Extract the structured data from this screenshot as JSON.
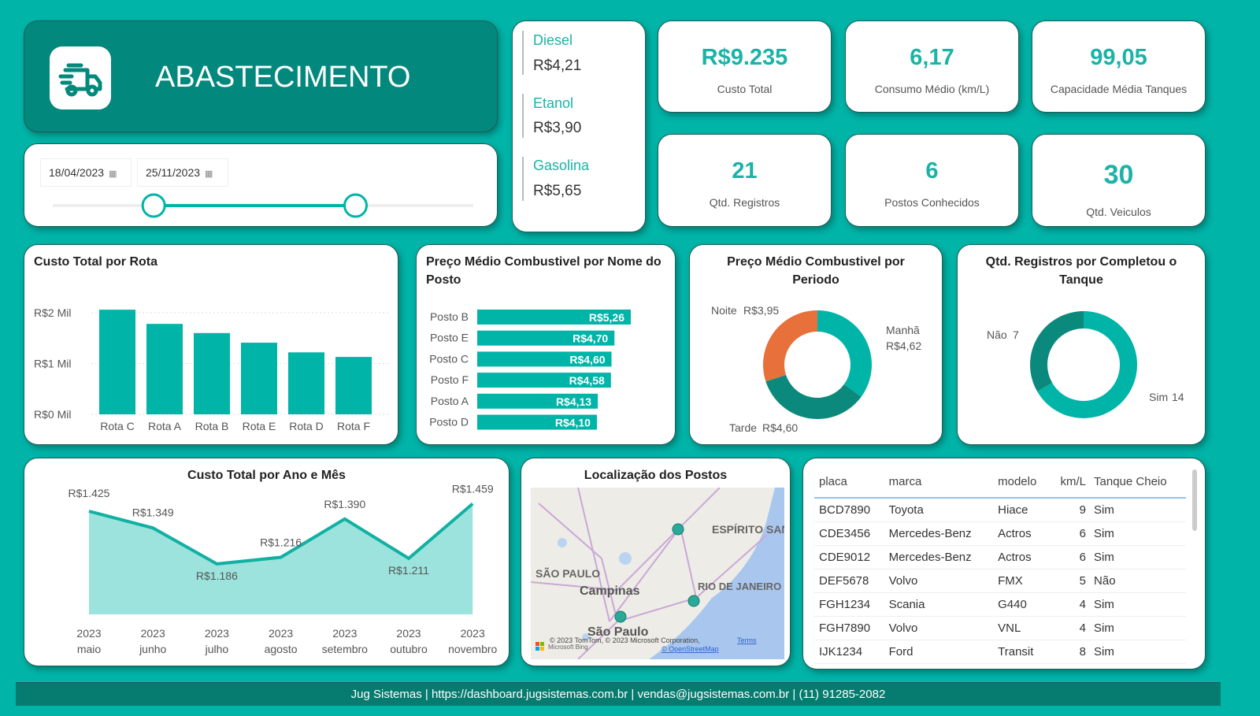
{
  "header": {
    "title": "ABASTECIMENTO",
    "icon": "delivery-truck-icon"
  },
  "date_filter": {
    "start": "18/04/2023",
    "end": "25/11/2023",
    "range_start": 0.24,
    "range_end": 0.72
  },
  "fuel_prices": [
    {
      "label": "Diesel",
      "value": "R$4,21"
    },
    {
      "label": "Etanol",
      "value": "R$3,90"
    },
    {
      "label": "Gasolina",
      "value": "R$5,65"
    }
  ],
  "kpis": [
    {
      "value": "R$9.235",
      "label": "Custo Total"
    },
    {
      "value": "6,17",
      "label": "Consumo Médio (km/L)"
    },
    {
      "value": "99,05",
      "label": "Capacidade Média Tanques"
    },
    {
      "value": "21",
      "label": "Qtd. Registros"
    },
    {
      "value": "6",
      "label": "Postos Conhecidos"
    },
    {
      "value": "30",
      "label": "Qtd. Veiculos"
    }
  ],
  "colors": {
    "accent": "#01b4a8",
    "dark": "#02887c",
    "orange": "#e8703a",
    "area": "#9be3dc"
  },
  "chart_data": [
    {
      "type": "bar",
      "title": "Custo Total por Rota",
      "categories": [
        "Rota C",
        "Rota A",
        "Rota B",
        "Rota E",
        "Rota D",
        "Rota F"
      ],
      "values": [
        2060,
        1780,
        1600,
        1410,
        1220,
        1130
      ],
      "yticks": [
        "R$0 Mil",
        "R$1 Mil",
        "R$2 Mil"
      ],
      "ylim": [
        0,
        2000
      ]
    },
    {
      "type": "bar",
      "orientation": "horizontal",
      "title": "Preço Médio Combustivel por Nome do Posto",
      "categories": [
        "Posto B",
        "Posto E",
        "Posto C",
        "Posto F",
        "Posto A",
        "Posto D"
      ],
      "values": [
        5.26,
        4.7,
        4.6,
        4.58,
        4.13,
        4.1
      ],
      "labels": [
        "R$5,26",
        "R$4,70",
        "R$4,60",
        "R$4,58",
        "R$4,13",
        "R$4,10"
      ]
    },
    {
      "type": "pie",
      "title": "Preço Médio Combustivel por Periodo",
      "slices": [
        {
          "label": "Manhã",
          "value": 4.62,
          "text": "R$4,62"
        },
        {
          "label": "Tarde",
          "value": 4.6,
          "text": "R$4,60"
        },
        {
          "label": "Noite",
          "value": 3.95,
          "text": "R$3,95"
        }
      ]
    },
    {
      "type": "pie",
      "title": "Qtd. Registros por Completou o Tanque",
      "slices": [
        {
          "label": "Sim",
          "value": 14
        },
        {
          "label": "Não",
          "value": 7
        }
      ]
    },
    {
      "type": "area",
      "title": "Custo Total por Ano e Mês",
      "categories": [
        [
          "2023",
          "maio"
        ],
        [
          "2023",
          "junho"
        ],
        [
          "2023",
          "julho"
        ],
        [
          "2023",
          "agosto"
        ],
        [
          "2023",
          "setembro"
        ],
        [
          "2023",
          "outubro"
        ],
        [
          "2023",
          "novembro"
        ]
      ],
      "values": [
        1425,
        1349,
        1186,
        1216,
        1390,
        1211,
        1459
      ],
      "labels": [
        "R$1.425",
        "R$1.349",
        "R$1.186",
        "R$1.216",
        "R$1.390",
        "R$1.211",
        "R$1.459"
      ]
    }
  ],
  "map": {
    "title": "Localização dos Postos",
    "labels": [
      "ESPÍRITO SAN",
      "SÃO PAULO",
      "Campinas",
      "RIO DE JANEIRO",
      "São Paulo"
    ],
    "attribution": "© 2023 TomTom, © 2023 Microsoft Corporation,",
    "terms": "Terms",
    "osm": "© OpenStreetMap",
    "bing": "Microsoft Bing"
  },
  "table": {
    "columns": [
      "placa",
      "marca",
      "modelo",
      "km/L",
      "Tanque Cheio"
    ],
    "rows": [
      [
        "BCD7890",
        "Toyota",
        "Hiace",
        "9",
        "Sim"
      ],
      [
        "CDE3456",
        "Mercedes-Benz",
        "Actros",
        "6",
        "Sim"
      ],
      [
        "CDE9012",
        "Mercedes-Benz",
        "Actros",
        "6",
        "Sim"
      ],
      [
        "DEF5678",
        "Volvo",
        "FMX",
        "5",
        "Não"
      ],
      [
        "FGH1234",
        "Scania",
        "G440",
        "4",
        "Sim"
      ],
      [
        "FGH7890",
        "Volvo",
        "VNL",
        "4",
        "Sim"
      ],
      [
        "IJK1234",
        "Ford",
        "Transit",
        "8",
        "Sim"
      ]
    ]
  },
  "footer": "Jug Sistemas | https://dashboard.jugsistemas.com.br | vendas@jugsistemas.com.br | (11) 91285-2082"
}
